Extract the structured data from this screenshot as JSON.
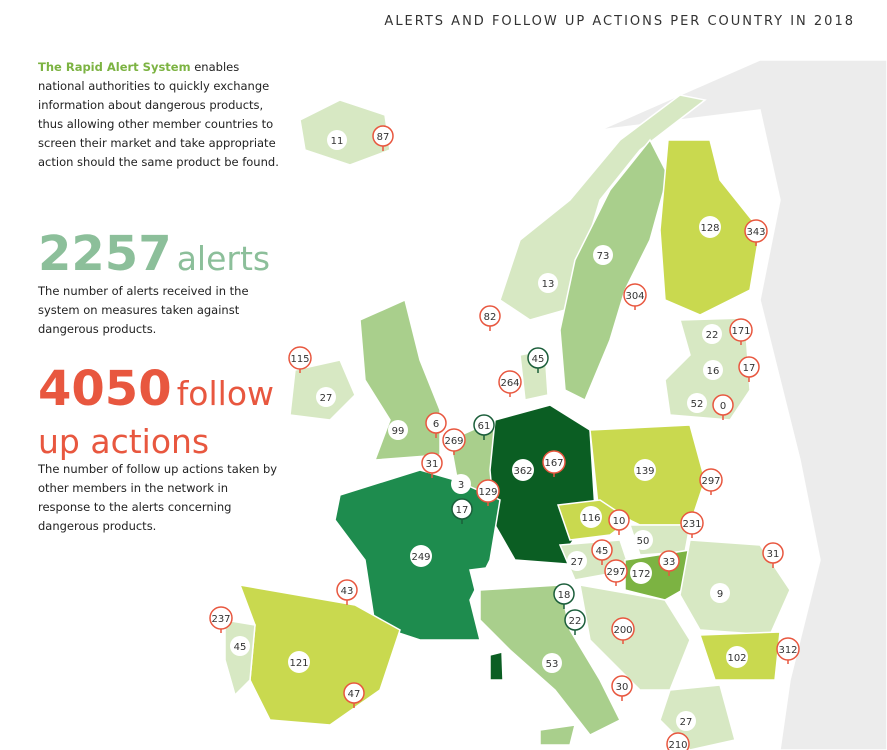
{
  "header": {
    "title": "ALERTS AND FOLLOW UP ACTIONS PER COUNTRY IN 2018"
  },
  "intro": {
    "highlight": "The Rapid Alert System",
    "text": "enables national authorities to quickly exchange information about dangerous products, thus allowing other member countries to screen their market and take appropriate action should the same product be found."
  },
  "alerts": {
    "number": "2257",
    "label": "alerts",
    "description": "The number of alerts received in the system on measures taken against dangerous products."
  },
  "follow_ups": {
    "number": "4050",
    "label": "follow up actions",
    "description": "The number of follow up actions taken by other members in the network in response to the alerts concerning dangerous products."
  },
  "markers": [
    {
      "value": "11",
      "kind": "alerts"
    },
    {
      "value": "73",
      "kind": "alerts"
    },
    {
      "value": "13",
      "kind": "alerts"
    },
    {
      "value": "128",
      "kind": "alerts"
    },
    {
      "value": "22",
      "kind": "alerts"
    },
    {
      "value": "16",
      "kind": "alerts"
    },
    {
      "value": "52",
      "kind": "alerts"
    },
    {
      "value": "27",
      "kind": "alerts"
    },
    {
      "value": "99",
      "kind": "alerts"
    },
    {
      "value": "362",
      "kind": "alerts"
    },
    {
      "value": "3",
      "kind": "alerts"
    },
    {
      "value": "139",
      "kind": "alerts"
    },
    {
      "value": "116",
      "kind": "alerts"
    },
    {
      "value": "50",
      "kind": "alerts"
    },
    {
      "value": "249",
      "kind": "alerts"
    },
    {
      "value": "27",
      "kind": "alerts"
    },
    {
      "value": "172",
      "kind": "alerts"
    },
    {
      "value": "9",
      "kind": "alerts"
    },
    {
      "value": "45",
      "kind": "alerts"
    },
    {
      "value": "121",
      "kind": "alerts"
    },
    {
      "value": "53",
      "kind": "alerts"
    },
    {
      "value": "102",
      "kind": "alerts"
    },
    {
      "value": "27",
      "kind": "alerts"
    },
    {
      "value": "87",
      "kind": "follow"
    },
    {
      "value": "343",
      "kind": "follow"
    },
    {
      "value": "304",
      "kind": "follow"
    },
    {
      "value": "82",
      "kind": "follow"
    },
    {
      "value": "171",
      "kind": "follow"
    },
    {
      "value": "17",
      "kind": "follow"
    },
    {
      "value": "0",
      "kind": "follow"
    },
    {
      "value": "115",
      "kind": "follow"
    },
    {
      "value": "264",
      "kind": "follow"
    },
    {
      "value": "6",
      "kind": "follow"
    },
    {
      "value": "269",
      "kind": "follow"
    },
    {
      "value": "167",
      "kind": "follow"
    },
    {
      "value": "31",
      "kind": "follow"
    },
    {
      "value": "129",
      "kind": "follow"
    },
    {
      "value": "297",
      "kind": "follow"
    },
    {
      "value": "10",
      "kind": "follow"
    },
    {
      "value": "231",
      "kind": "follow"
    },
    {
      "value": "45",
      "kind": "follow"
    },
    {
      "value": "33",
      "kind": "follow"
    },
    {
      "value": "297",
      "kind": "follow"
    },
    {
      "value": "31",
      "kind": "follow"
    },
    {
      "value": "43",
      "kind": "follow"
    },
    {
      "value": "237",
      "kind": "follow"
    },
    {
      "value": "200",
      "kind": "follow"
    },
    {
      "value": "312",
      "kind": "follow"
    },
    {
      "value": "47",
      "kind": "follow"
    },
    {
      "value": "30",
      "kind": "follow"
    },
    {
      "value": "210",
      "kind": "follow"
    },
    {
      "value": "45",
      "kind": "pin"
    },
    {
      "value": "61",
      "kind": "pin"
    },
    {
      "value": "17",
      "kind": "pin"
    },
    {
      "value": "18",
      "kind": "pin"
    },
    {
      "value": "22",
      "kind": "pin"
    }
  ]
}
